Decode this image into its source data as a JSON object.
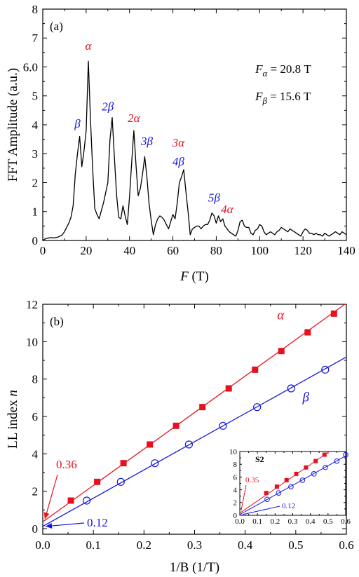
{
  "chart_data": [
    {
      "type": "line",
      "panel_label": "(a)",
      "xlabel_var": "F",
      "xlabel_unit": "(T)",
      "ylabel": "FFT Amplitude (a.u.)",
      "xlim": [
        0,
        140
      ],
      "ylim": [
        0,
        8
      ],
      "x_ticks": [
        0,
        20,
        40,
        60,
        80,
        100,
        120,
        140
      ],
      "y_ticks": [
        0,
        1,
        2,
        3,
        4,
        5,
        6,
        7,
        8
      ],
      "y_tick_labels": [
        "0",
        "1",
        "2",
        "3",
        "4",
        "5",
        "6.0",
        "7",
        "8"
      ],
      "series": [
        {
          "color": "#000000",
          "x": [
            0,
            1,
            2,
            3,
            4,
            5,
            6,
            7,
            8,
            9,
            10,
            11,
            12,
            13,
            14,
            15,
            16,
            17,
            18,
            19,
            20,
            21,
            22,
            23,
            24,
            25,
            26,
            28,
            30,
            31,
            32,
            33,
            34,
            35,
            36,
            37,
            38,
            39,
            40,
            41,
            42,
            43,
            44,
            45,
            46,
            47,
            48,
            49,
            50,
            51,
            52,
            53,
            54,
            55,
            56,
            57,
            58,
            59,
            60,
            61,
            62,
            63,
            64,
            65,
            66,
            67,
            68,
            69,
            70,
            71,
            72,
            73,
            74,
            75,
            76,
            77,
            78,
            79,
            80,
            81,
            82,
            83,
            84,
            85,
            86,
            87,
            88,
            89,
            90,
            91,
            92,
            93,
            94,
            95,
            96,
            97,
            98,
            99,
            100,
            101,
            102,
            103,
            104,
            105,
            106,
            107,
            108,
            109,
            110,
            111,
            112,
            113,
            114,
            115,
            116,
            117,
            118,
            119,
            120,
            121,
            122,
            123,
            124,
            125,
            126,
            127,
            128,
            129,
            130,
            131,
            132,
            133,
            134,
            135,
            136,
            137,
            138,
            139,
            140
          ],
          "y": [
            0.0,
            0.05,
            0.08,
            0.09,
            0.1,
            0.09,
            0.1,
            0.12,
            0.15,
            0.2,
            0.3,
            0.45,
            0.6,
            0.8,
            1.2,
            2.3,
            3.0,
            3.6,
            2.55,
            3.1,
            3.8,
            6.2,
            4.2,
            2.5,
            1.1,
            0.9,
            0.75,
            1.3,
            2.0,
            3.5,
            4.25,
            2.9,
            1.6,
            0.8,
            0.75,
            1.2,
            0.85,
            0.55,
            1.5,
            2.7,
            3.8,
            2.6,
            1.55,
            1.8,
            2.3,
            2.9,
            2.2,
            1.3,
            0.7,
            0.2,
            0.55,
            0.75,
            0.85,
            0.8,
            0.7,
            0.55,
            0.4,
            0.65,
            0.9,
            0.75,
            1.3,
            2.0,
            2.2,
            2.45,
            1.7,
            1.0,
            0.2,
            0.4,
            0.45,
            0.5,
            0.5,
            0.4,
            0.5,
            0.55,
            0.55,
            0.7,
            0.95,
            0.85,
            0.6,
            0.85,
            0.65,
            0.75,
            0.5,
            0.4,
            0.3,
            0.25,
            0.2,
            0.15,
            0.35,
            0.65,
            0.7,
            0.5,
            0.45,
            0.45,
            0.25,
            0.2,
            0.35,
            0.4,
            0.55,
            0.5,
            0.3,
            0.2,
            0.25,
            0.3,
            0.25,
            0.2,
            0.3,
            0.35,
            0.45,
            0.4,
            0.35,
            0.3,
            0.4,
            0.35,
            0.3,
            0.25,
            0.2,
            0.15,
            0.3,
            0.4,
            0.35,
            0.25,
            0.25,
            0.2,
            0.25,
            0.2,
            0.2,
            0.15,
            0.25,
            0.2,
            0.15,
            0.2,
            0.25,
            0.3,
            0.25,
            0.2,
            0.3,
            0.25,
            0.2
          ]
        }
      ],
      "peak_labels": [
        {
          "text": "α",
          "x": 21,
          "y": 6.6,
          "color": "#e8101e"
        },
        {
          "text": "β",
          "x": 16,
          "y": 3.9,
          "color": "#1414e6"
        },
        {
          "text": "2β",
          "x": 30,
          "y": 4.5,
          "color": "#1414e6"
        },
        {
          "text": "2α",
          "x": 42,
          "y": 4.1,
          "color": "#e8101e"
        },
        {
          "text": "3β",
          "x": 48,
          "y": 3.3,
          "color": "#1414e6"
        },
        {
          "text": "3α",
          "x": 62.5,
          "y": 3.25,
          "color": "#e8101e"
        },
        {
          "text": "4β",
          "x": 62.5,
          "y": 2.6,
          "color": "#1414e6"
        },
        {
          "text": "5β",
          "x": 79,
          "y": 1.35,
          "color": "#1414e6"
        },
        {
          "text": "4α",
          "x": 85,
          "y": 0.95,
          "color": "#e8101e"
        }
      ],
      "annotations": [
        {
          "text_var": "F",
          "sub": "α",
          "text_val": " = 20.8 T",
          "x": 98,
          "y": 5.8
        },
        {
          "text_var": "F",
          "sub": "β",
          "text_val": " = 15.6 T",
          "x": 98,
          "y": 4.85
        }
      ]
    },
    {
      "type": "scatter",
      "panel_label": "(b)",
      "xlabel": "1/B (1/T)",
      "ylabel_text": "LL index ",
      "ylabel_var": "n",
      "xlim": [
        0,
        0.6
      ],
      "ylim": [
        -0.3,
        12
      ],
      "x_ticks": [
        0.0,
        0.1,
        0.2,
        0.3,
        0.4,
        0.5,
        0.6
      ],
      "y_ticks": [
        0,
        2,
        4,
        6,
        8,
        10,
        12
      ],
      "series": [
        {
          "label": "α",
          "color": "#e8101e",
          "marker": "filled-square",
          "x": [
            0.0555,
            0.1075,
            0.1595,
            0.2115,
            0.2635,
            0.3155,
            0.3675,
            0.4195,
            0.4715,
            0.5235,
            0.5755
          ],
          "y": [
            1.5,
            2.5,
            3.5,
            4.5,
            5.5,
            6.5,
            7.5,
            8.5,
            9.5,
            10.5,
            11.5
          ],
          "fit": {
            "intercept": 0.36,
            "slope": 19.5
          }
        },
        {
          "label": "β",
          "color": "#1414e6",
          "marker": "open-circle",
          "x": [
            0.0868,
            0.1542,
            0.2215,
            0.2888,
            0.3562,
            0.4235,
            0.4908,
            0.5581
          ],
          "y": [
            1.5,
            2.5,
            3.5,
            4.5,
            5.5,
            6.5,
            7.5,
            8.5
          ],
          "fit": {
            "intercept": 0.12,
            "slope": 15.1
          }
        }
      ],
      "intercept_labels": [
        {
          "text": "0.36",
          "color": "#e8101e"
        },
        {
          "text": "0.12",
          "color": "#1414e6"
        }
      ],
      "series_labels": [
        {
          "text": "α",
          "x": 0.47,
          "y": 11.2,
          "color": "#e8101e"
        },
        {
          "text": "β",
          "x": 0.52,
          "y": 6.8,
          "color": "#1414e6"
        }
      ],
      "inset": {
        "title": "S2",
        "xlim": [
          0,
          0.6
        ],
        "ylim": [
          0,
          10
        ],
        "x_ticks": [
          0.0,
          0.1,
          0.2,
          0.3,
          0.4,
          0.5,
          0.6
        ],
        "y_ticks": [
          0,
          2,
          4,
          6,
          8,
          10
        ],
        "series": [
          {
            "color": "#e8101e",
            "marker": "filled-square",
            "x": [
              0.15,
              0.21,
              0.265,
              0.32,
              0.375,
              0.43,
              0.48
            ],
            "y": [
              3.5,
              4.5,
              5.5,
              6.5,
              7.5,
              8.5,
              9.5
            ],
            "fit": {
              "intercept": 0.35,
              "slope": 19.0
            }
          },
          {
            "color": "#1414e6",
            "marker": "open-circle",
            "x": [
              0.155,
              0.22,
              0.29,
              0.355,
              0.42,
              0.485,
              0.55,
              0.6
            ],
            "y": [
              2.5,
              3.5,
              4.5,
              5.5,
              6.5,
              7.5,
              8.5,
              9.5
            ],
            "fit": {
              "intercept": 0.12,
              "slope": 15.3
            }
          }
        ],
        "intercept_labels": [
          {
            "text": "0.35",
            "color": "#e8101e"
          },
          {
            "text": "0.12",
            "color": "#1414e6"
          }
        ]
      }
    }
  ]
}
